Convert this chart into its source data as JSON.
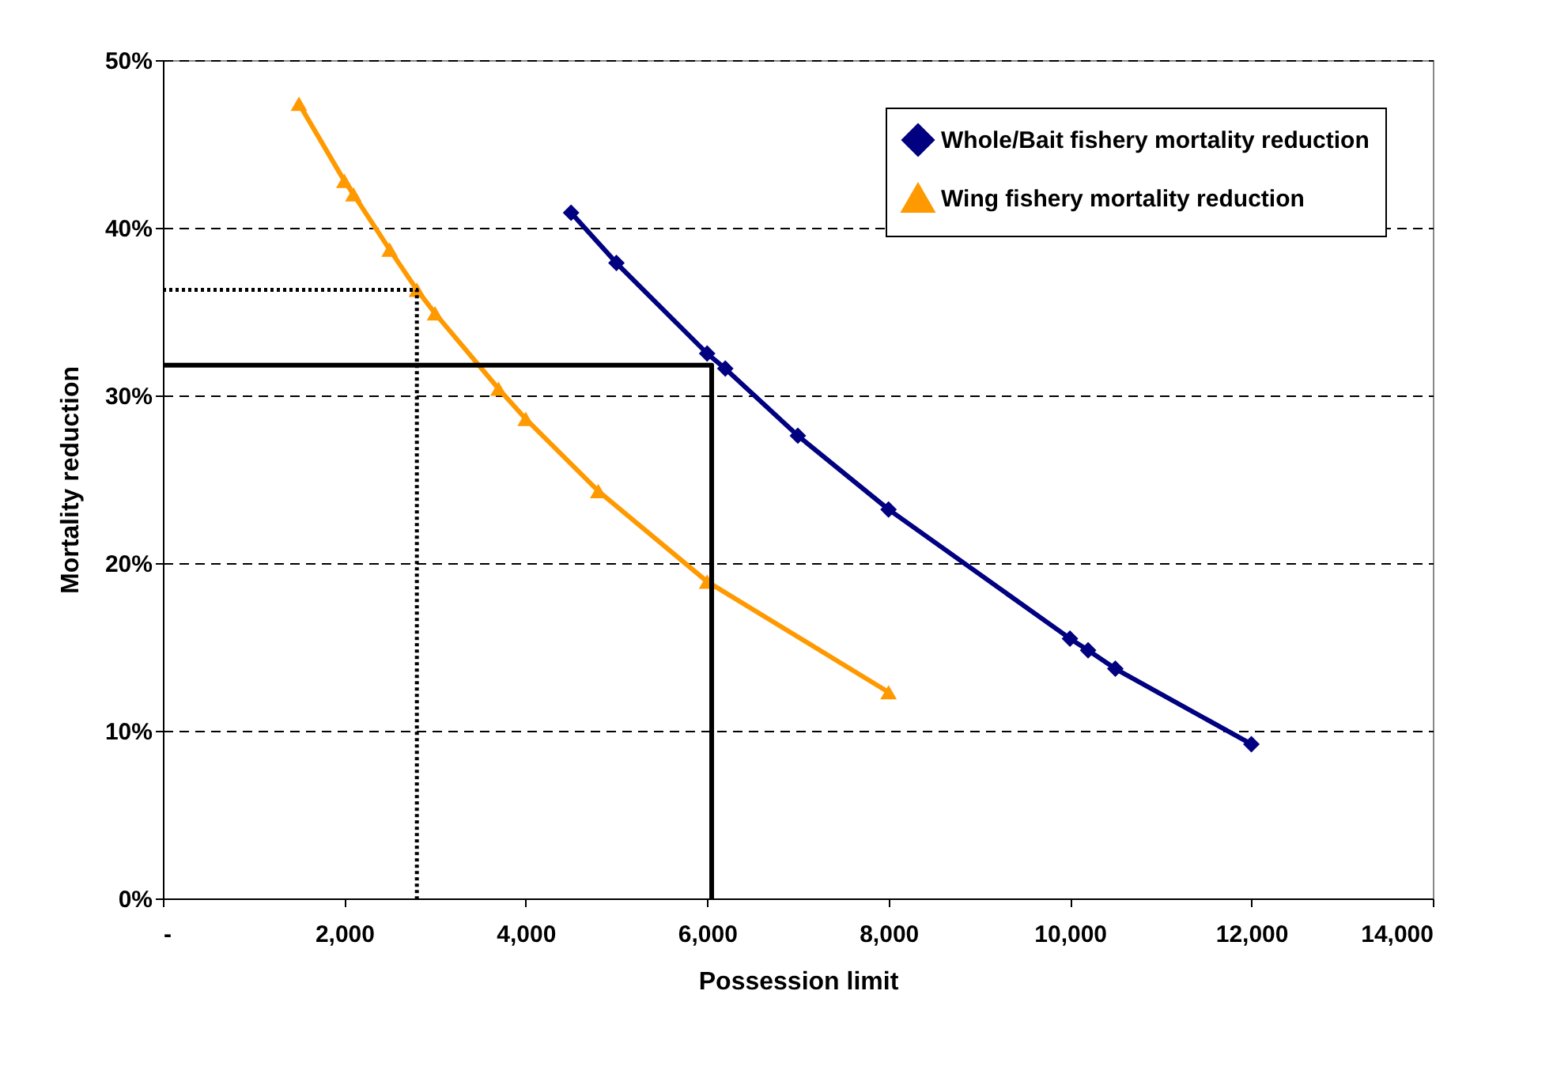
{
  "chart_data": {
    "type": "line",
    "xlabel": "Possession limit",
    "ylabel": "Mortality reduction",
    "xlim": [
      0,
      14000
    ],
    "xticks": [
      {
        "value": 0,
        "label": "-"
      },
      {
        "value": 2000,
        "label": "2,000"
      },
      {
        "value": 4000,
        "label": "4,000"
      },
      {
        "value": 6000,
        "label": "6,000"
      },
      {
        "value": 8000,
        "label": "8,000"
      },
      {
        "value": 10000,
        "label": "10,000"
      },
      {
        "value": 12000,
        "label": "12,000"
      },
      {
        "value": 14000,
        "label": "14,000"
      }
    ],
    "ylim": [
      0,
      50
    ],
    "yticks": [
      {
        "value": 0,
        "label": "0%"
      },
      {
        "value": 10,
        "label": "10%"
      },
      {
        "value": 20,
        "label": "20%"
      },
      {
        "value": 30,
        "label": "30%"
      },
      {
        "value": 40,
        "label": "40%"
      },
      {
        "value": 50,
        "label": "50%"
      }
    ],
    "grid": "y",
    "legend": "top right",
    "series": [
      {
        "name": "Whole/Bait fishery mortality reduction",
        "color": "#000080",
        "marker": "diamond",
        "x": [
          4500,
          5000,
          6000,
          6200,
          7000,
          8000,
          10000,
          10200,
          10500,
          12000
        ],
        "values": [
          40.9,
          37.9,
          32.5,
          31.6,
          27.6,
          23.2,
          15.5,
          14.8,
          13.7,
          9.2
        ]
      },
      {
        "name": "Wing fishery mortality reduction",
        "color": "#ff9900",
        "marker": "triangle",
        "x": [
          1500,
          2000,
          2100,
          2500,
          2800,
          3000,
          3700,
          4000,
          4800,
          6000,
          8000
        ],
        "values": [
          47.4,
          42.8,
          42.0,
          38.7,
          36.3,
          34.9,
          30.4,
          28.6,
          24.3,
          18.9,
          12.3
        ]
      },
      {
        "color": "#000000",
        "marker": "none",
        "line_style": "solid",
        "x": [
          0,
          6050,
          6050
        ],
        "values": [
          31.8,
          31.8,
          0
        ]
      },
      {
        "color": "#000000",
        "marker": "none",
        "line_style": "dotted",
        "x": [
          0,
          2800,
          2800
        ],
        "values": [
          36.3,
          36.3,
          0
        ]
      }
    ]
  }
}
